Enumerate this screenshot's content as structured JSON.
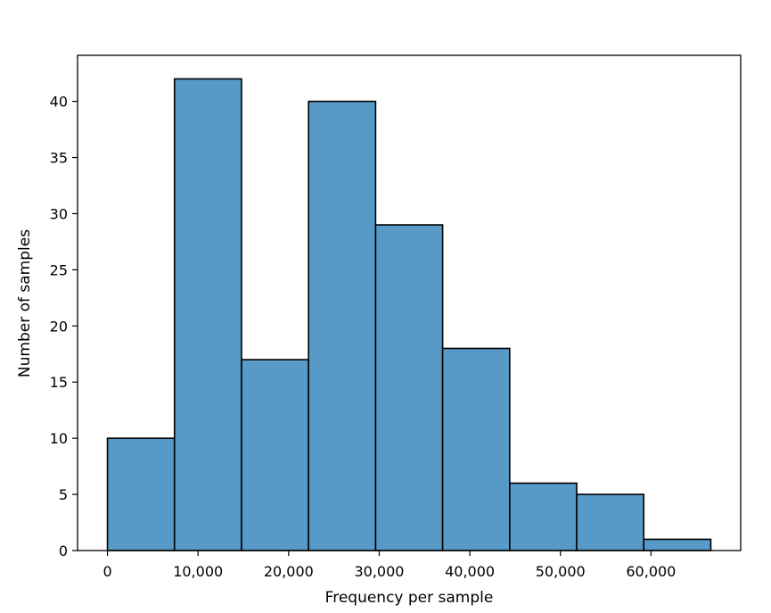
{
  "chart_data": {
    "type": "bar",
    "subtype": "histogram",
    "title": "",
    "xlabel": "Frequency per sample",
    "ylabel": "Number of samples",
    "bins": [
      {
        "start": 0,
        "end": 7400,
        "count": 10
      },
      {
        "start": 7400,
        "end": 14800,
        "count": 42
      },
      {
        "start": 14800,
        "end": 22200,
        "count": 17
      },
      {
        "start": 22200,
        "end": 29600,
        "count": 40
      },
      {
        "start": 29600,
        "end": 37000,
        "count": 29
      },
      {
        "start": 37000,
        "end": 44400,
        "count": 18
      },
      {
        "start": 44400,
        "end": 51800,
        "count": 6
      },
      {
        "start": 51800,
        "end": 59200,
        "count": 5
      },
      {
        "start": 59200,
        "end": 66600,
        "count": 1
      }
    ],
    "xlim": [
      -3300,
      69900
    ],
    "ylim": [
      0,
      44.1
    ],
    "xticks": [
      0,
      10000,
      20000,
      30000,
      40000,
      50000,
      60000
    ],
    "xtick_labels": [
      "0",
      "10,000",
      "20,000",
      "30,000",
      "40,000",
      "50,000",
      "60,000"
    ],
    "yticks": [
      0,
      5,
      10,
      15,
      20,
      25,
      30,
      35,
      40
    ],
    "ytick_labels": [
      "0",
      "5",
      "10",
      "15",
      "20",
      "25",
      "30",
      "35",
      "40"
    ],
    "grid": false,
    "legend": false,
    "colors": {
      "bar_fill": "#5799c7",
      "bar_edge": "#000000"
    }
  }
}
